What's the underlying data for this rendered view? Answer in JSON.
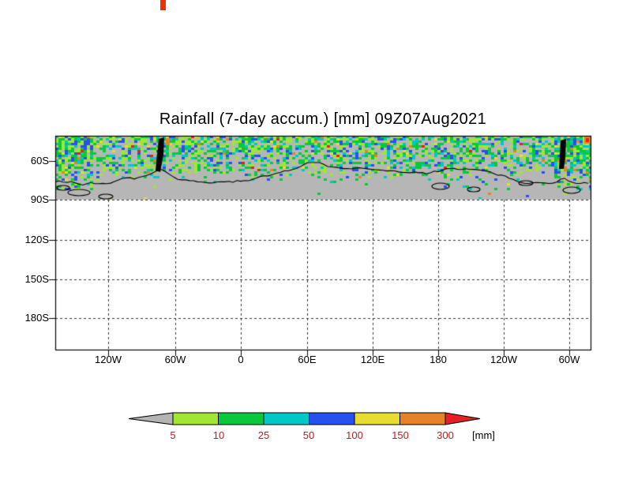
{
  "decorations": {
    "top_mark_color": "#f03000"
  },
  "chart_data": {
    "type": "heatmap",
    "title": "Rainfall (7-day accum.) [mm] 09Z07Aug2021",
    "y_axis": {
      "tick_labels": [
        "60S",
        "90S",
        "120S",
        "150S",
        "180S"
      ]
    },
    "x_axis": {
      "tick_labels": [
        "120W",
        "60W",
        "0",
        "60E",
        "120E",
        "180",
        "120W",
        "60W"
      ]
    },
    "colorbar": {
      "tick_labels": [
        "5",
        "10",
        "25",
        "50",
        "100",
        "150",
        "300"
      ],
      "unit_label": "[mm]",
      "below_color": "#b4b4b4",
      "bin_colors": [
        "#a0e632",
        "#0ac83c",
        "#00c8c8",
        "#2850f0",
        "#e6dc32",
        "#e68228"
      ],
      "above_color": "#e62020",
      "label_color": "#b22222"
    },
    "map": {
      "background_color": "#b6b6b6",
      "coastline_color": "#000000",
      "summary": "Band of 7-day accumulated rainfall along the top of the panel: mostly 5-25 mm (greens) with embedded 25-100 mm cells (cyan/blue) and isolated 150-300+ mm spots (orange/red), above the Antarctic coastline; region below 90S is empty with dashed gridlines."
    },
    "gridlines": {
      "style": "dashed",
      "on": true
    }
  }
}
